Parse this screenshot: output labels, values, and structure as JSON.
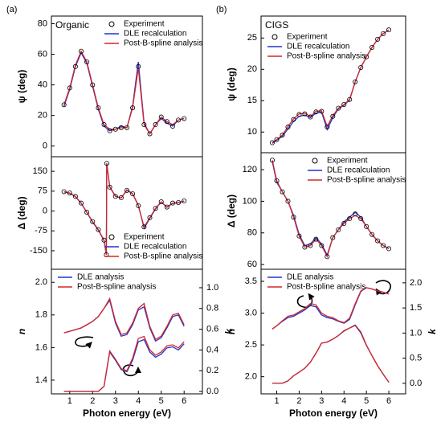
{
  "chart_data": [
    {
      "type": "line",
      "panel_label": "(a)",
      "annotation": "Organic",
      "ylabel": "ψ (deg)",
      "legend": "upper right",
      "xlim": [
        0.2,
        6.8
      ],
      "ylim": [
        -7,
        85
      ],
      "yticks": [
        0,
        20,
        40,
        60,
        80
      ],
      "x": [
        0.75,
        1,
        1.25,
        1.5,
        1.75,
        2,
        2.25,
        2.5,
        2.75,
        3,
        3.25,
        3.5,
        3.75,
        4,
        4.25,
        4.5,
        4.75,
        5,
        5.25,
        5.5,
        5.75,
        6
      ],
      "series": [
        {
          "name": "Experiment",
          "marker": "circle",
          "color": "#000000",
          "values": [
            27,
            38,
            52,
            62,
            55,
            40,
            25,
            14,
            10,
            11,
            12,
            12,
            25,
            52,
            14,
            8,
            14,
            19,
            16,
            13,
            17,
            18
          ]
        },
        {
          "name": "DLE recalculation",
          "color": "#2233cc",
          "values": [
            26,
            37,
            52,
            61,
            54,
            39,
            24,
            13,
            10,
            11,
            13,
            12,
            26,
            55,
            15,
            8,
            14,
            18,
            15,
            13,
            17,
            18
          ]
        },
        {
          "name": "Post-B-spline analysis",
          "color": "#d62728",
          "values": [
            27,
            38,
            53,
            62,
            55,
            40,
            25,
            14,
            11,
            11,
            12,
            12,
            25,
            51,
            14,
            8,
            14,
            19,
            16,
            14,
            17,
            18
          ]
        }
      ]
    },
    {
      "type": "line",
      "ylabel": "Δ (deg)",
      "legend": "lower right",
      "xlim": [
        0.2,
        6.8
      ],
      "ylim": [
        -220,
        205
      ],
      "yticks": [
        -150,
        -75,
        0,
        75,
        150
      ],
      "x": [
        0.75,
        1,
        1.25,
        1.5,
        1.75,
        2,
        2.25,
        2.5,
        2.6,
        2.62,
        2.75,
        3,
        3.25,
        3.5,
        3.75,
        4,
        4.25,
        4.5,
        4.75,
        5,
        5.25,
        5.5,
        5.75,
        6
      ],
      "series": [
        {
          "name": "Experiment",
          "marker": "circle",
          "color": "#000000",
          "values": [
            73,
            68,
            55,
            30,
            -5,
            -40,
            -70,
            -110,
            -165,
            180,
            90,
            55,
            50,
            78,
            65,
            20,
            -60,
            -25,
            10,
            35,
            15,
            30,
            32,
            38
          ]
        },
        {
          "name": "DLE recalculation",
          "color": "#2233cc",
          "values": [
            72,
            67,
            54,
            29,
            -6,
            -42,
            -72,
            -112,
            -165,
            180,
            92,
            56,
            49,
            80,
            66,
            22,
            -65,
            -28,
            8,
            34,
            14,
            29,
            31,
            37
          ]
        },
        {
          "name": "Post-B-spline analysis",
          "color": "#d62728",
          "values": [
            73,
            68,
            55,
            30,
            -5,
            -40,
            -70,
            -110,
            -165,
            180,
            90,
            55,
            50,
            78,
            65,
            20,
            -60,
            -25,
            10,
            35,
            15,
            30,
            32,
            38
          ]
        }
      ]
    },
    {
      "type": "line",
      "ylabel": "n",
      "y2label": "k",
      "xlabel": "Photon energy (eV)",
      "legend": "upper left",
      "xlim": [
        0.2,
        6.8
      ],
      "xticks": [
        1,
        2,
        3,
        4,
        5,
        6
      ],
      "ylim": [
        1.316,
        2.08
      ],
      "yticks": [
        {
          "value": 1.4,
          "label": "1.4"
        },
        {
          "value": 1.6,
          "label": "1.6"
        },
        {
          "value": 1.8,
          "label": "1.8"
        },
        {
          "value": 2,
          "label": "2.0"
        }
      ],
      "y2lim": [
        -0.023,
        1.178
      ],
      "y2ticks": [
        {
          "value": 0,
          "label": "0.0"
        },
        {
          "value": 0.2,
          "label": "0.2"
        },
        {
          "value": 0.4,
          "label": "0.4"
        },
        {
          "value": 0.6,
          "label": "0.6"
        },
        {
          "value": 0.8,
          "label": "0.8"
        },
        {
          "value": 1,
          "label": "1.0"
        }
      ],
      "x": [
        0.75,
        1,
        1.25,
        1.5,
        1.75,
        2,
        2.25,
        2.5,
        2.75,
        3,
        3.25,
        3.5,
        3.75,
        4,
        4.25,
        4.5,
        4.75,
        5,
        5.25,
        5.5,
        5.75,
        6
      ],
      "series": [
        {
          "name": "DLE analysis",
          "color": "#2233cc",
          "values": [
            1.69,
            1.7,
            1.71,
            1.72,
            1.74,
            1.76,
            1.79,
            1.84,
            1.89,
            1.75,
            1.67,
            1.68,
            1.74,
            1.83,
            1.85,
            1.72,
            1.64,
            1.66,
            1.72,
            1.79,
            1.8,
            1.73
          ]
        },
        {
          "name": "Post-B-spline analysis",
          "color": "#d62728",
          "values": [
            1.69,
            1.7,
            1.71,
            1.72,
            1.74,
            1.76,
            1.79,
            1.84,
            1.9,
            1.76,
            1.68,
            1.69,
            1.75,
            1.84,
            1.87,
            1.73,
            1.65,
            1.67,
            1.73,
            1.8,
            1.81,
            1.74
          ]
        },
        {
          "axis": "y2",
          "color": "#2233cc",
          "values": [
            0,
            0,
            0,
            0,
            0,
            0,
            0,
            0.05,
            0.38,
            0.3,
            0.21,
            0.19,
            0.3,
            0.48,
            0.5,
            0.38,
            0.33,
            0.36,
            0.42,
            0.43,
            0.4,
            0.46
          ]
        },
        {
          "axis": "y2",
          "color": "#d62728",
          "values": [
            0,
            0,
            0,
            0,
            0,
            0,
            0,
            0.05,
            0.39,
            0.31,
            0.22,
            0.2,
            0.32,
            0.51,
            0.53,
            0.4,
            0.35,
            0.38,
            0.44,
            0.45,
            0.42,
            0.48
          ]
        }
      ]
    },
    {
      "type": "line",
      "panel_label": "(b)",
      "annotation": "CIGS",
      "ylabel": "ψ (deg)",
      "legend": "upper left",
      "xlim": [
        0.3,
        6.75
      ],
      "ylim": [
        6.7,
        28.5
      ],
      "yticks": [
        10,
        15,
        20,
        25
      ],
      "x": [
        0.8,
        1,
        1.25,
        1.5,
        1.75,
        2,
        2.25,
        2.5,
        2.75,
        3,
        3.25,
        3.5,
        3.75,
        4,
        4.25,
        4.5,
        4.75,
        5,
        5.25,
        5.5,
        5.75,
        6
      ],
      "series": [
        {
          "name": "Experiment",
          "marker": "circle",
          "color": "#000000",
          "values": [
            8.3,
            8.8,
            9.5,
            10.8,
            12,
            12.8,
            12.9,
            12.4,
            13.2,
            13.3,
            10.8,
            12.5,
            13.8,
            14.4,
            15.2,
            18,
            20.3,
            22,
            23.5,
            24.8,
            25.7,
            26.3
          ]
        },
        {
          "name": "DLE recalculation",
          "color": "#2233cc",
          "values": [
            8.2,
            8.7,
            9.3,
            10.5,
            11.7,
            12.5,
            12.7,
            12.3,
            13,
            13.2,
            10.4,
            12.3,
            13.7,
            14.3,
            15.1,
            18,
            20.3,
            22,
            23.5,
            24.8,
            25.7,
            26.3
          ]
        },
        {
          "name": "Post-B-spline analysis",
          "color": "#d62728",
          "values": [
            8.3,
            8.8,
            9.5,
            10.9,
            12.1,
            12.9,
            13,
            12.5,
            13.3,
            13.4,
            10.9,
            12.6,
            13.8,
            14.4,
            15.2,
            18,
            20.3,
            22,
            23.5,
            24.8,
            25.7,
            26.3
          ]
        }
      ]
    },
    {
      "type": "line",
      "ylabel": "Δ (deg)",
      "legend": "upper right",
      "xlim": [
        0.3,
        6.75
      ],
      "ylim": [
        57,
        130.7
      ],
      "yticks": [
        60,
        80,
        100,
        120
      ],
      "x": [
        0.8,
        1,
        1.25,
        1.5,
        1.75,
        2,
        2.25,
        2.5,
        2.75,
        3,
        3.25,
        3.5,
        3.75,
        4,
        4.25,
        4.5,
        4.75,
        5,
        5.25,
        5.5,
        5.75,
        6
      ],
      "series": [
        {
          "name": "Experiment",
          "marker": "circle",
          "color": "#000000",
          "values": [
            126,
            113,
            106,
            100,
            90,
            78,
            71,
            72,
            76,
            72,
            65,
            77,
            82,
            86,
            89,
            92,
            89,
            84,
            79,
            75,
            72,
            70
          ]
        },
        {
          "name": "DLE recalculation",
          "color": "#2233cc",
          "values": [
            125,
            112,
            106,
            100,
            91,
            79,
            72,
            73,
            77,
            73,
            66,
            77,
            82,
            87,
            90,
            93,
            90,
            84,
            79,
            75,
            72,
            70
          ]
        },
        {
          "name": "Post-B-spline analysis",
          "color": "#d62728",
          "values": [
            126,
            113,
            106,
            100,
            90,
            78,
            71,
            72,
            76,
            72,
            65,
            77,
            82,
            86,
            89,
            91,
            89,
            84,
            79,
            75,
            72,
            70
          ]
        }
      ]
    },
    {
      "type": "line",
      "ylabel": "n",
      "y2label": "k",
      "xlabel": "Photon energy (eV)",
      "legend": "upper left",
      "xlim": [
        0.3,
        6.75
      ],
      "xticks": [
        1,
        2,
        3,
        4,
        5,
        6
      ],
      "ylim": [
        1.73,
        3.69
      ],
      "yticks": [
        {
          "value": 2,
          "label": "2.0"
        },
        2.5,
        {
          "value": 3,
          "label": "3.0"
        },
        3.5
      ],
      "y2lim": [
        -0.21,
        2.27
      ],
      "y2ticks": [
        {
          "value": 0,
          "label": "0.0"
        },
        0.5,
        {
          "value": 1,
          "label": "1.0"
        },
        1.5,
        {
          "value": 2,
          "label": "2.0"
        }
      ],
      "x": [
        0.8,
        1,
        1.25,
        1.5,
        1.75,
        2,
        2.25,
        2.5,
        2.75,
        3,
        3.25,
        3.5,
        3.75,
        4,
        4.25,
        4.5,
        4.75,
        5,
        5.25,
        5.5,
        5.75,
        6
      ],
      "series": [
        {
          "name": "DLE analysis",
          "color": "#2233cc",
          "values": [
            2.75,
            2.8,
            2.87,
            2.93,
            2.95,
            3,
            3.05,
            3.12,
            3.1,
            2.97,
            2.93,
            2.91,
            2.87,
            2.84,
            2.9,
            3.13,
            3.34,
            3.4,
            3.38,
            3.35,
            3.33,
            3.3
          ]
        },
        {
          "name": "Post-B-spline analysis",
          "color": "#d62728",
          "values": [
            2.75,
            2.8,
            2.88,
            2.95,
            2.97,
            3.02,
            3.07,
            3.15,
            3.13,
            3,
            2.95,
            2.93,
            2.88,
            2.85,
            2.92,
            3.15,
            3.35,
            3.4,
            3.38,
            3.35,
            3.33,
            3.3
          ]
        },
        {
          "axis": "y2",
          "color": "#2233cc",
          "values": [
            0,
            0,
            0,
            0.05,
            0.15,
            0.22,
            0.3,
            0.42,
            0.6,
            0.8,
            0.82,
            0.88,
            0.95,
            1.04,
            1.1,
            1.16,
            1.02,
            0.76,
            0.55,
            0.35,
            0.18,
            0.02
          ]
        },
        {
          "axis": "y2",
          "color": "#d62728",
          "values": [
            0,
            0,
            0,
            0.05,
            0.15,
            0.22,
            0.3,
            0.42,
            0.6,
            0.8,
            0.82,
            0.88,
            0.95,
            1.05,
            1.1,
            1.15,
            1,
            0.75,
            0.55,
            0.35,
            0.18,
            0.02
          ]
        }
      ]
    }
  ]
}
